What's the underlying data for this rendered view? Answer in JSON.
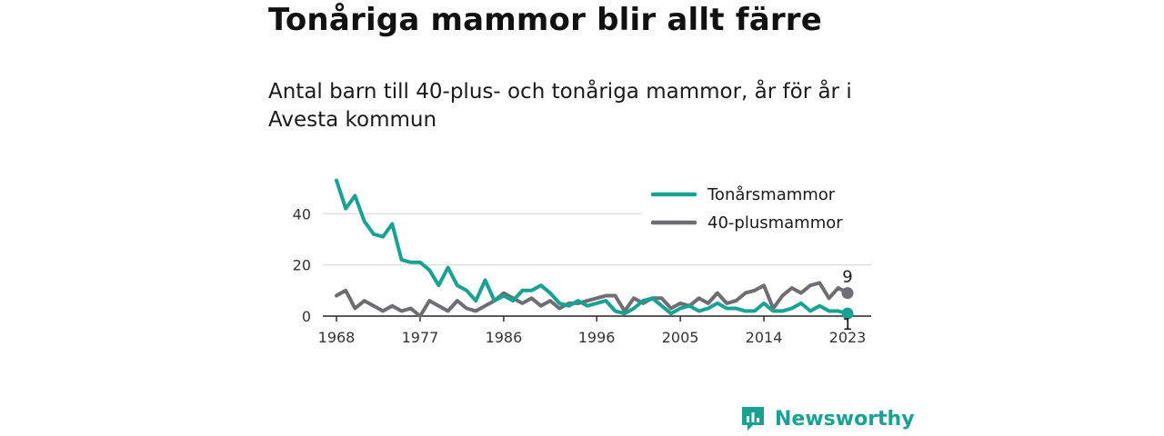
{
  "header": {
    "title": "Tonåriga mammor blir allt färre",
    "subtitle": "Antal barn till 40-plus- och tonåriga mammor, år för år i Avesta kommun"
  },
  "brand": {
    "name": "Newsworthy",
    "icon": "newsworthy-logo-icon",
    "color": "#16a394"
  },
  "chart_data": {
    "type": "line",
    "x": [
      1968,
      1969,
      1970,
      1971,
      1972,
      1973,
      1974,
      1975,
      1976,
      1977,
      1978,
      1979,
      1980,
      1981,
      1982,
      1983,
      1984,
      1985,
      1986,
      1987,
      1988,
      1989,
      1990,
      1991,
      1992,
      1993,
      1994,
      1995,
      1996,
      1997,
      1998,
      1999,
      2000,
      2001,
      2002,
      2003,
      2004,
      2005,
      2006,
      2007,
      2008,
      2009,
      2010,
      2011,
      2012,
      2013,
      2014,
      2015,
      2016,
      2017,
      2018,
      2019,
      2020,
      2021,
      2022,
      2023
    ],
    "series": [
      {
        "name": "Tonårsmammor",
        "color": "#16a394",
        "values": [
          53,
          42,
          47,
          37,
          32,
          31,
          36,
          22,
          21,
          21,
          18,
          12,
          19,
          12,
          10,
          6,
          14,
          6,
          8,
          6,
          10,
          10,
          12,
          9,
          5,
          4,
          6,
          4,
          5,
          6,
          2,
          1,
          3,
          6,
          7,
          4,
          1,
          3,
          4,
          2,
          3,
          5,
          3,
          3,
          2,
          2,
          5,
          2,
          2,
          3,
          5,
          2,
          4,
          2,
          2,
          1
        ]
      },
      {
        "name": "40-plusmammor",
        "color": "#6e6d72",
        "values": [
          8,
          10,
          3,
          6,
          4,
          2,
          4,
          2,
          3,
          0,
          6,
          4,
          2,
          6,
          3,
          2,
          4,
          6,
          9,
          7,
          5,
          7,
          4,
          6,
          3,
          5,
          5,
          6,
          7,
          8,
          8,
          2,
          7,
          5,
          7,
          7,
          3,
          5,
          4,
          7,
          5,
          9,
          5,
          6,
          9,
          10,
          12,
          3,
          8,
          11,
          9,
          12,
          13,
          7,
          11,
          9
        ]
      }
    ],
    "end_labels": [
      "9",
      "1"
    ],
    "xticks": [
      "1968",
      "1977",
      "1986",
      "1996",
      "2005",
      "2014",
      "2023"
    ],
    "yticks": [
      "0",
      "20",
      "40"
    ],
    "ylim": [
      0,
      55
    ],
    "grid": true,
    "legend_position": "top-right"
  }
}
